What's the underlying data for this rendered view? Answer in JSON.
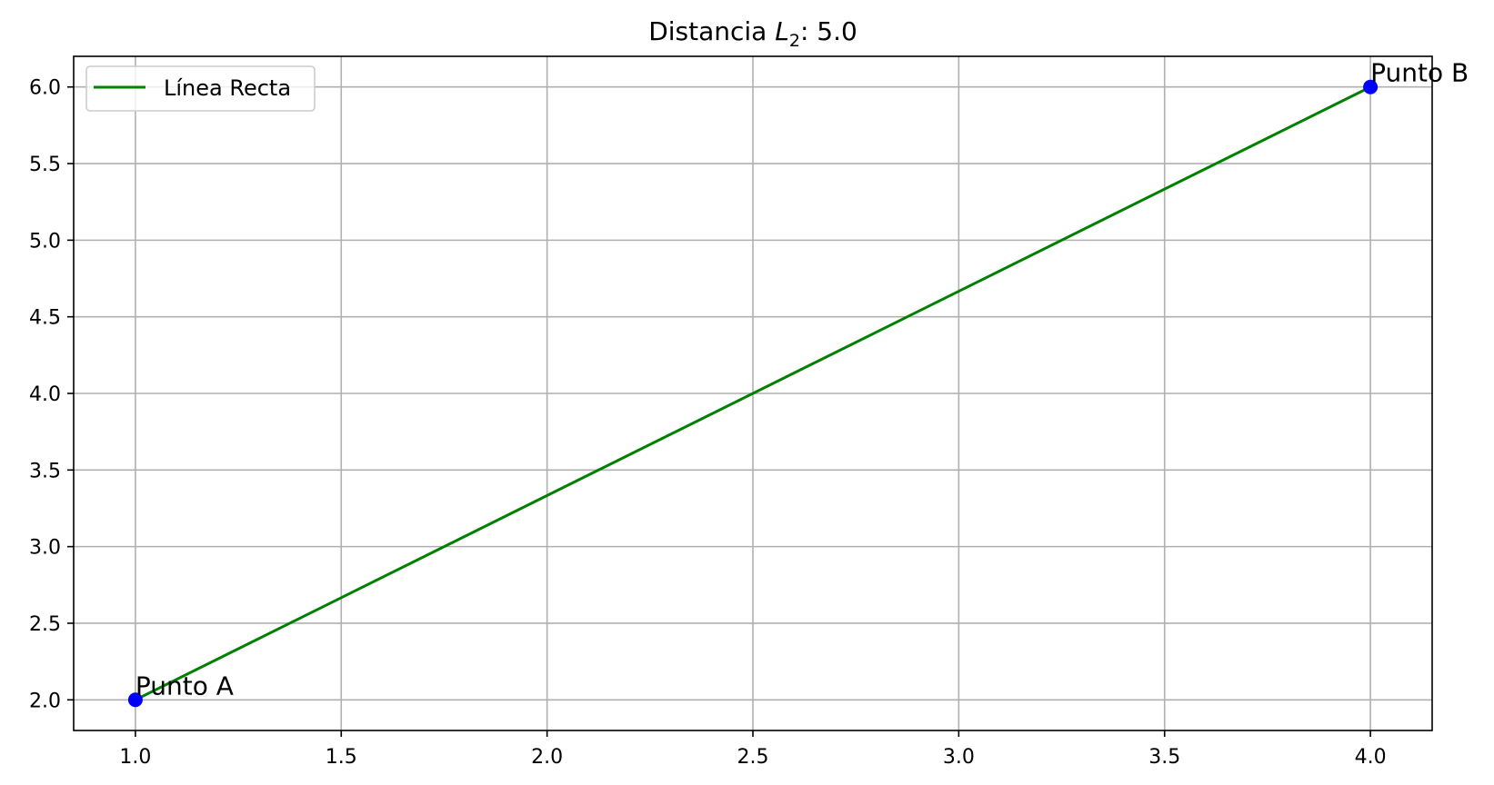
{
  "chart_data": {
    "type": "line",
    "title": {
      "prefix": "Distancia ",
      "symbol": "L",
      "subscript": "2",
      "suffix": ": 5.0"
    },
    "xlabel": "",
    "ylabel": "",
    "xlim": [
      0.85,
      4.15
    ],
    "ylim": [
      1.8,
      6.2
    ],
    "xticks": [
      1.0,
      1.5,
      2.0,
      2.5,
      3.0,
      3.5,
      4.0
    ],
    "xtick_labels": [
      "1.0",
      "1.5",
      "2.0",
      "2.5",
      "3.0",
      "3.5",
      "4.0"
    ],
    "yticks": [
      2.0,
      2.5,
      3.0,
      3.5,
      4.0,
      4.5,
      5.0,
      5.5,
      6.0
    ],
    "ytick_labels": [
      "2.0",
      "2.5",
      "3.0",
      "3.5",
      "4.0",
      "4.5",
      "5.0",
      "5.5",
      "6.0"
    ],
    "grid": true,
    "legend": {
      "placement": "top-left"
    },
    "series": [
      {
        "name": "Línea Recta",
        "type": "line",
        "color": "#008000",
        "x": [
          1,
          4
        ],
        "y": [
          2,
          6
        ]
      }
    ],
    "points": [
      {
        "label": "Punto A",
        "x": 1,
        "y": 2,
        "color": "#0000ff"
      },
      {
        "label": "Punto B",
        "x": 4,
        "y": 6,
        "color": "#0000ff"
      }
    ]
  }
}
